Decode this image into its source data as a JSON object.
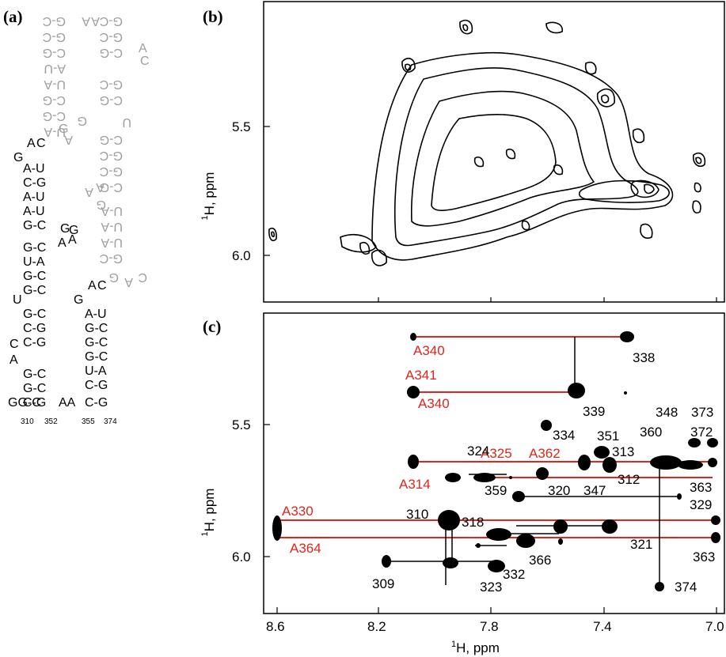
{
  "panels": {
    "a": "(a)",
    "b": "(b)",
    "c": "(c)"
  },
  "secondary_structure": {
    "black_lines": [
      [
        "G",
        "A",
        "C"
      ],
      "A-U",
      "C-G",
      "A-U",
      "A-U",
      "G-C",
      "G",
      "G",
      "A",
      "A",
      "G-C",
      "U-A",
      "G-C",
      "G-C",
      "U",
      "G-C",
      "C-G",
      "C-G",
      "C",
      "A",
      "G-C",
      "G-C",
      "C-G",
      "GG-C",
      "AA",
      "A",
      "C",
      "G",
      "A-U",
      "G-C",
      "G-C",
      "G-C",
      "U-A",
      "C-G",
      "C-G",
      "C-G"
    ],
    "numbers": [
      "310",
      "352",
      "355",
      "374"
    ]
  },
  "colors": {
    "assignment_line": "#e0261c",
    "gray_strand": "#9e9e9e",
    "contour": "#000000"
  },
  "chart_data": [
    {
      "panel": "b",
      "type": "heatmap",
      "x_range_ppm": [
        8.62,
        6.98
      ],
      "y_range_ppm": [
        5.1,
        6.14
      ],
      "y_ticks": [
        "5.5",
        "6.0"
      ],
      "ylabel_sup": "1",
      "ylabel": "H, ppm"
    },
    {
      "panel": "c",
      "type": "scatter",
      "x_range_ppm": [
        8.62,
        6.98
      ],
      "y_range_ppm": [
        5.1,
        6.14
      ],
      "x_ticks": [
        "8.6",
        "8.2",
        "7.8",
        "7.4",
        "7.0"
      ],
      "y_ticks": [
        "5.5",
        "6.0"
      ],
      "xlabel_sup": "1",
      "xlabel": "H, ppm",
      "ylabel_sup": "1",
      "ylabel": "H, ppm",
      "labels_black": [
        "338",
        "339",
        "334",
        "351",
        "348",
        "373",
        "324",
        "360",
        "372",
        "313",
        "359",
        "320",
        "347",
        "312",
        "363",
        "329",
        "310",
        "318",
        "321",
        "366",
        "332",
        "363",
        "309",
        "323",
        "374"
      ],
      "labels_red": [
        "A340",
        "A341",
        "A340",
        "A325",
        "A362",
        "A314",
        "A330",
        "A364"
      ]
    }
  ]
}
